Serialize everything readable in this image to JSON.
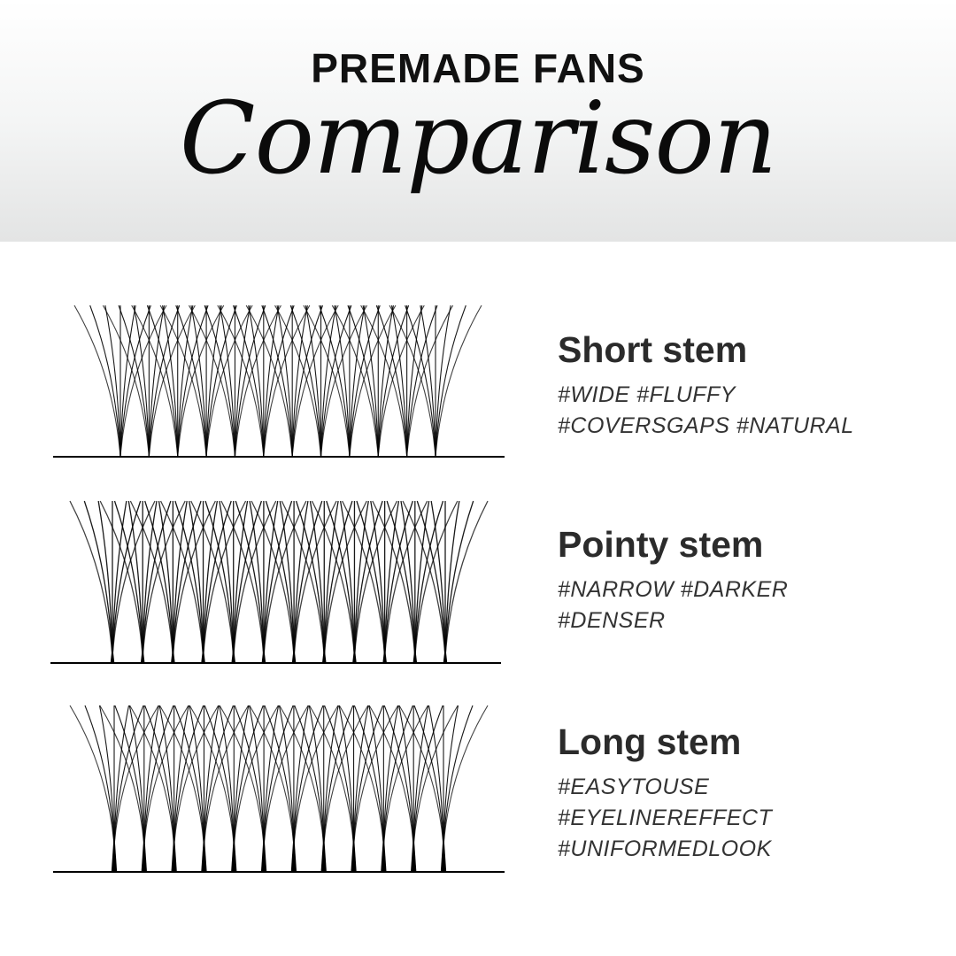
{
  "header": {
    "kicker": "PREMADE FANS",
    "title": "Comparison"
  },
  "colors": {
    "text": "#2b2b2b",
    "lash": "#000000",
    "header_gradient_bottom": "#e3e4e4"
  },
  "items": [
    {
      "name": "Short stem",
      "tags": [
        "#WIDE #FLUFFY",
        "#COVERSGAPS #NATURAL"
      ],
      "stem": "short"
    },
    {
      "name": "Pointy stem",
      "tags": [
        "#NARROW #DARKER",
        "#DENSER"
      ],
      "stem": "pointy"
    },
    {
      "name": "Long stem",
      "tags": [
        "#EASYTOUSE",
        "#EYELINEREFFECT",
        "#UNIFORMEDLOOK"
      ],
      "stem": "long"
    }
  ]
}
